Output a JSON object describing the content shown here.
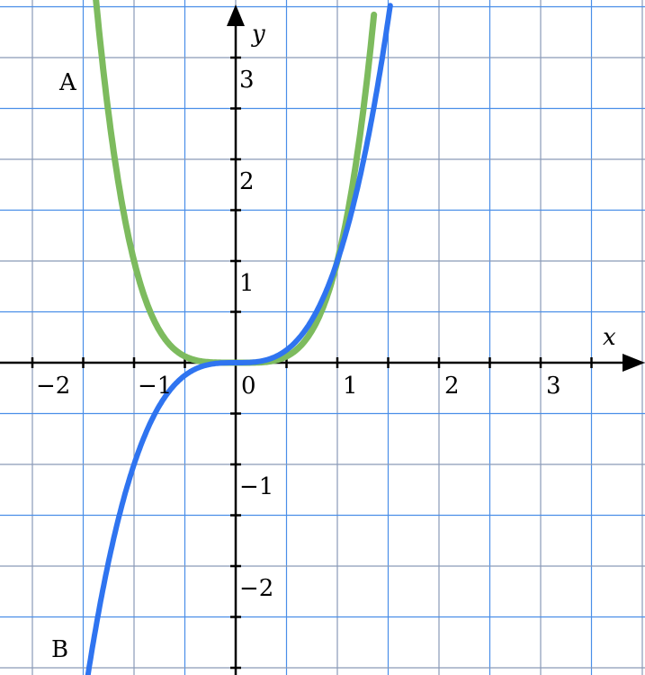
{
  "chart_data": {
    "type": "line",
    "xlabel": "x",
    "ylabel": "y",
    "xlim": [
      -2.3,
      4.0
    ],
    "ylim": [
      -3.0,
      3.55
    ],
    "grid": true,
    "grid_step": 0.5,
    "x_ticks": [
      "−2",
      "−1",
      "0",
      "1",
      "2",
      "3"
    ],
    "y_ticks": [
      "3",
      "2",
      "1",
      "−1",
      "−2"
    ],
    "series": [
      {
        "label": "A",
        "function": "y = x^4",
        "color": "#7dbb5e",
        "x_range": [
          -1.75,
          1.36
        ]
      },
      {
        "label": "B",
        "function": "y = x^3",
        "color": "#2f74f0",
        "x_range": [
          -1.5,
          1.52
        ]
      }
    ],
    "grid_color": "#4a8ee8",
    "axis_color": "#000000"
  }
}
